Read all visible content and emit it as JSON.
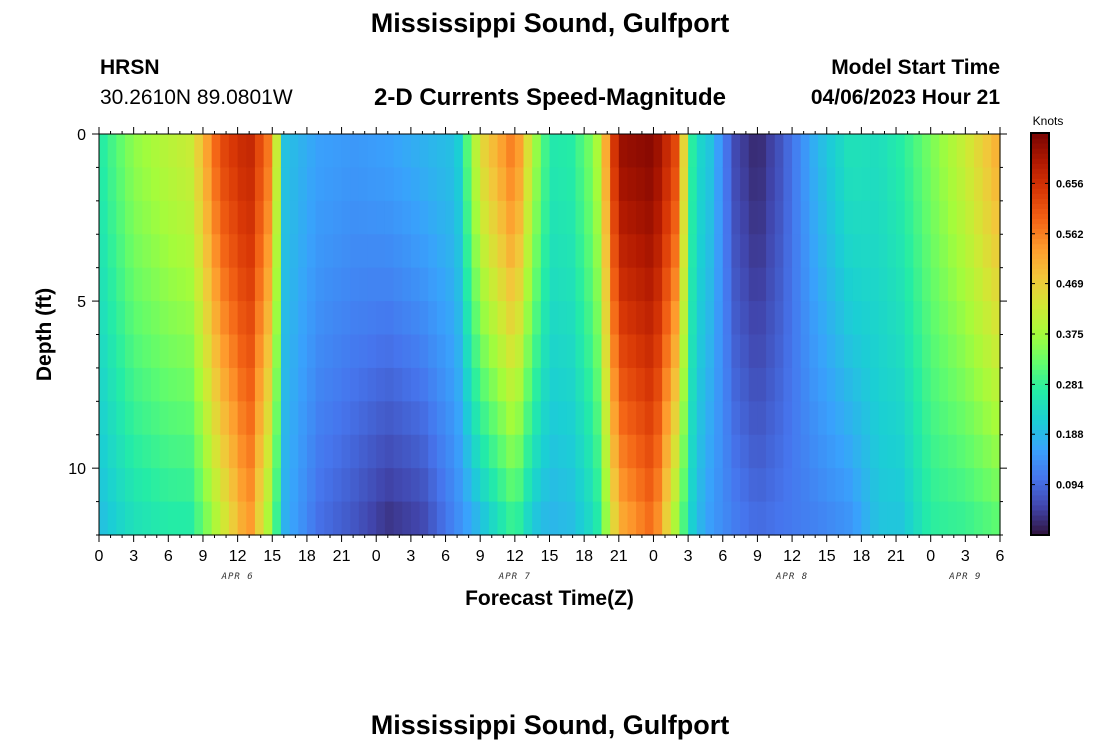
{
  "page_title": "Mississippi Sound, Gulfport",
  "header": {
    "station_id": "HRSN",
    "coords": "30.2610N  89.0801W",
    "chart_title": "2-D Currents Speed-Magnitude",
    "model_start_label": "Model Start Time",
    "model_start_value": "04/06/2023 Hour 21"
  },
  "footer_title": "Mississippi Sound, Gulfport",
  "chart_data": {
    "type": "heatmap",
    "title": "2-D Currents Speed-Magnitude",
    "xlabel": "Forecast Time(Z)",
    "ylabel": "Depth (ft)",
    "x_tick_labels": [
      "0",
      "3",
      "6",
      "9",
      "12",
      "15",
      "18",
      "21",
      "0",
      "3",
      "6",
      "9",
      "12",
      "15",
      "18",
      "21",
      "0",
      "3",
      "6",
      "9",
      "12",
      "15",
      "18",
      "21",
      "0",
      "3",
      "6"
    ],
    "x_date_labels": [
      {
        "label": "APR 6",
        "hour": 12
      },
      {
        "label": "APR 7",
        "hour": 36
      },
      {
        "label": "APR 8",
        "hour": 60
      },
      {
        "label": "APR 9",
        "hour": 75
      }
    ],
    "x_range_hours": [
      0,
      78
    ],
    "y_ticks": [
      0,
      5,
      10
    ],
    "y_range_ft": [
      0,
      12
    ],
    "colorbar": {
      "label": "Knots",
      "ticks": [
        0.094,
        0.188,
        0.281,
        0.375,
        0.469,
        0.562,
        0.656
      ],
      "range": [
        0.0,
        0.75
      ],
      "colors": [
        "#30123b",
        "#4145ab",
        "#4675ed",
        "#39a2fc",
        "#1bcfd4",
        "#24eca6",
        "#61fc6c",
        "#a4fc3b",
        "#d1e834",
        "#f3c63a",
        "#fe9b2d",
        "#f36315",
        "#d93806",
        "#b11901",
        "#7a0402"
      ]
    },
    "profiles": [
      {
        "hour": 0,
        "top": 0.26,
        "bottom": 0.19
      },
      {
        "hour": 3,
        "top": 0.36,
        "bottom": 0.24
      },
      {
        "hour": 6,
        "top": 0.4,
        "bottom": 0.26
      },
      {
        "hour": 8,
        "top": 0.42,
        "bottom": 0.26
      },
      {
        "hour": 10.5,
        "top": 0.62,
        "bottom": 0.4
      },
      {
        "hour": 13,
        "top": 0.68,
        "bottom": 0.54
      },
      {
        "hour": 15,
        "top": 0.55,
        "bottom": 0.34
      },
      {
        "hour": 16,
        "top": 0.2,
        "bottom": 0.18
      },
      {
        "hour": 19,
        "top": 0.16,
        "bottom": 0.1
      },
      {
        "hour": 22,
        "top": 0.15,
        "bottom": 0.07
      },
      {
        "hour": 25,
        "top": 0.16,
        "bottom": 0.03
      },
      {
        "hour": 28,
        "top": 0.18,
        "bottom": 0.05
      },
      {
        "hour": 31,
        "top": 0.2,
        "bottom": 0.13
      },
      {
        "hour": 33,
        "top": 0.45,
        "bottom": 0.18
      },
      {
        "hour": 36,
        "top": 0.58,
        "bottom": 0.28
      },
      {
        "hour": 37.5,
        "top": 0.4,
        "bottom": 0.2
      },
      {
        "hour": 39,
        "top": 0.26,
        "bottom": 0.18
      },
      {
        "hour": 41,
        "top": 0.27,
        "bottom": 0.19
      },
      {
        "hour": 43,
        "top": 0.36,
        "bottom": 0.24
      },
      {
        "hour": 45,
        "top": 0.72,
        "bottom": 0.5
      },
      {
        "hour": 48,
        "top": 0.74,
        "bottom": 0.58
      },
      {
        "hour": 50,
        "top": 0.62,
        "bottom": 0.36
      },
      {
        "hour": 51.5,
        "top": 0.24,
        "bottom": 0.2
      },
      {
        "hour": 53,
        "top": 0.2,
        "bottom": 0.15
      },
      {
        "hour": 55,
        "top": 0.06,
        "bottom": 0.12
      },
      {
        "hour": 57,
        "top": 0.02,
        "bottom": 0.1
      },
      {
        "hour": 59,
        "top": 0.07,
        "bottom": 0.11
      },
      {
        "hour": 62,
        "top": 0.18,
        "bottom": 0.12
      },
      {
        "hour": 65,
        "top": 0.25,
        "bottom": 0.14
      },
      {
        "hour": 67.5,
        "top": 0.24,
        "bottom": 0.2
      },
      {
        "hour": 69.5,
        "top": 0.27,
        "bottom": 0.2
      },
      {
        "hour": 72,
        "top": 0.34,
        "bottom": 0.27
      },
      {
        "hour": 75,
        "top": 0.42,
        "bottom": 0.28
      },
      {
        "hour": 78,
        "top": 0.52,
        "bottom": 0.31
      }
    ]
  }
}
